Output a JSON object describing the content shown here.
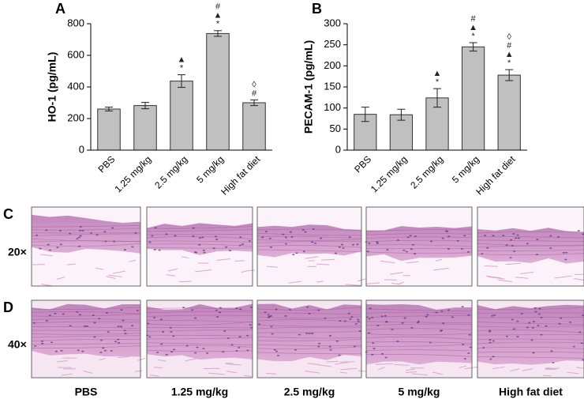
{
  "chart_data": [
    {
      "type": "bar",
      "label": "A",
      "y_label": "HO-1 (pg/mL)",
      "categories": [
        "PBS",
        "1.25 mg/kg",
        "2.5 mg/kg",
        "5 mg/kg",
        "High fat diet"
      ],
      "values": [
        260,
        282,
        437,
        738,
        300
      ],
      "errors": [
        12,
        20,
        40,
        18,
        18
      ],
      "annotations": [
        [],
        [],
        [
          "▲",
          "*"
        ],
        [
          "#",
          "▲",
          "*"
        ],
        [
          "◊",
          "#"
        ]
      ],
      "color": "#c0c0c0",
      "ylim": [
        0,
        800
      ],
      "yticks": [
        0,
        200,
        400,
        600,
        800
      ]
    },
    {
      "type": "bar",
      "label": "B",
      "y_label": "PECAM-1 (pg/mL)",
      "categories": [
        "PBS",
        "1.25 mg/kg",
        "2.5 mg/kg",
        "5 mg/kg",
        "High fat diet"
      ],
      "values": [
        85,
        84,
        124,
        245,
        178
      ],
      "errors": [
        17,
        13,
        22,
        10,
        13
      ],
      "annotations": [
        [],
        [],
        [
          "▲",
          "*"
        ],
        [
          "#",
          "▲",
          "*"
        ],
        [
          "◊",
          "#",
          "▲",
          "*"
        ]
      ],
      "color": "#c0c0c0",
      "ylim": [
        0,
        300
      ],
      "yticks": [
        0,
        50,
        100,
        150,
        200,
        250,
        300
      ]
    }
  ],
  "histology": {
    "panel_labels": [
      "C",
      "D"
    ],
    "row_labels": [
      "20×",
      "40×"
    ],
    "column_labels": [
      "PBS",
      "1.25 mg/kg",
      "2.5 mg/kg",
      "5 mg/kg",
      "High fat diet"
    ]
  }
}
